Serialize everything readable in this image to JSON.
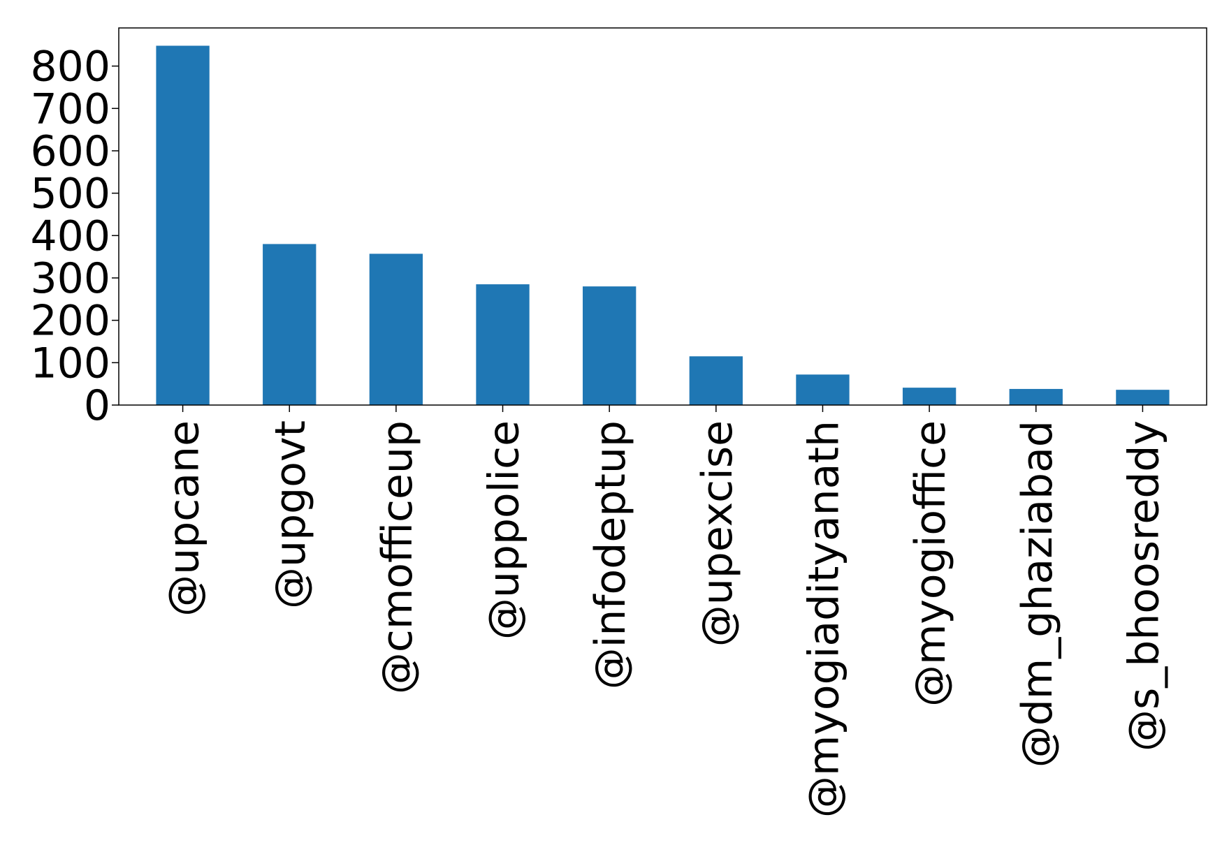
{
  "chart_data": {
    "type": "bar",
    "categories": [
      "@upcane",
      "@upgovt",
      "@cmofficeup",
      "@uppolice",
      "@infodeptup",
      "@upexcise",
      "@myogiadityanath",
      "@myogioffice",
      "@dm_ghaziabad",
      "@s_bhoosreddy"
    ],
    "values": [
      848,
      380,
      357,
      285,
      280,
      115,
      72,
      41,
      38,
      36
    ],
    "yticks": [
      0,
      100,
      200,
      300,
      400,
      500,
      600,
      700,
      800
    ],
    "ylim": [
      0,
      890
    ],
    "title": "",
    "xlabel": "",
    "ylabel": "",
    "bar_color": "#1f77b4",
    "grid": false,
    "legend": "none"
  }
}
